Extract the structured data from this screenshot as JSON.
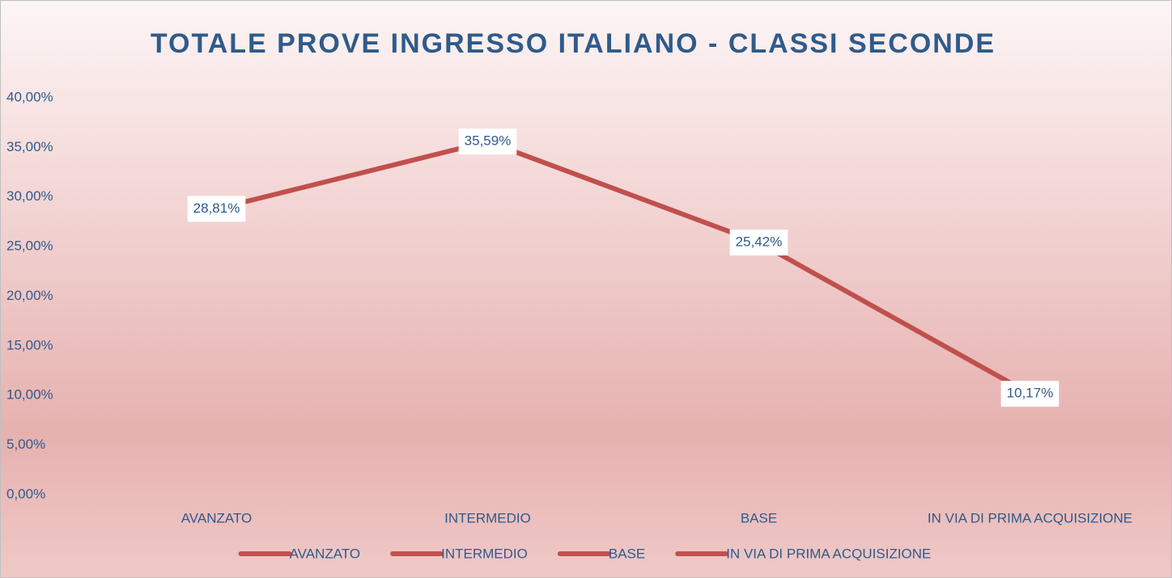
{
  "chart_data": {
    "type": "line",
    "title": "TOTALE PROVE INGRESSO ITALIANO - CLASSI SECONDE",
    "categories": [
      "AVANZATO",
      "INTERMEDIO",
      "BASE",
      "IN VIA DI PRIMA ACQUISIZIONE"
    ],
    "series": [
      {
        "name": "TOTALE PROVE INGRESSO ITALIANO - CLASSI SECONDE",
        "color": "#c0504d",
        "values": [
          28.81,
          35.59,
          25.42,
          10.17
        ],
        "value_labels": [
          "28,81%",
          "35,59%",
          "25,42%",
          "10,17%"
        ]
      }
    ],
    "ylim": [
      0,
      40
    ],
    "yticks": [
      {
        "value": 0,
        "label": "0,00%"
      },
      {
        "value": 5,
        "label": "5,00%"
      },
      {
        "value": 10,
        "label": "10,00%"
      },
      {
        "value": 15,
        "label": "15,00%"
      },
      {
        "value": 20,
        "label": "20,00%"
      },
      {
        "value": 25,
        "label": "25,00%"
      },
      {
        "value": 30,
        "label": "30,00%"
      },
      {
        "value": 35,
        "label": "35,00%"
      },
      {
        "value": 40,
        "label": "40,00%"
      }
    ],
    "grid": false
  }
}
